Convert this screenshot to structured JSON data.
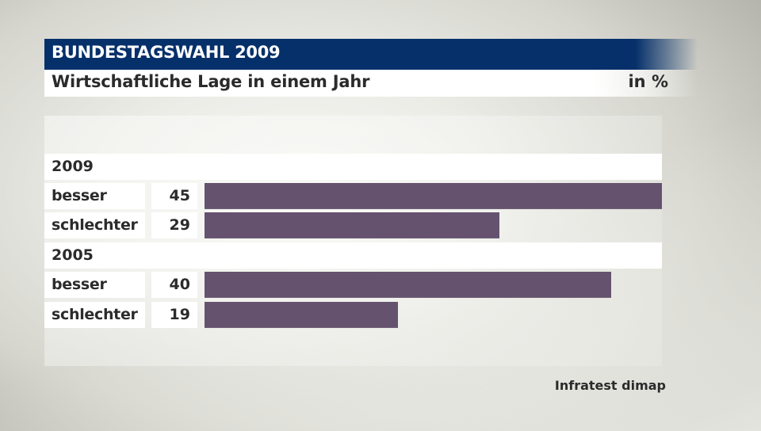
{
  "header": {
    "title": "BUNDESTAGSWAHL 2009",
    "subtitle": "Wirtschaftliche Lage in einem Jahr",
    "unit": "in %"
  },
  "colors": {
    "header_bg": "#06306a",
    "bar": "#65526f",
    "label_bg": "#ffffff",
    "text": "#2b2b2b"
  },
  "groups": [
    {
      "label": "2009",
      "rows": [
        {
          "label": "besser",
          "value": 45
        },
        {
          "label": "schlechter",
          "value": 29
        }
      ]
    },
    {
      "label": "2005",
      "rows": [
        {
          "label": "besser",
          "value": 40
        },
        {
          "label": "schlechter",
          "value": 19
        }
      ]
    }
  ],
  "source": "Infratest dimap",
  "chart_data": {
    "type": "bar",
    "orientation": "horizontal",
    "title": "BUNDESTAGSWAHL 2009",
    "subtitle": "Wirtschaftliche Lage in einem Jahr",
    "unit": "in %",
    "categories": [
      "besser",
      "schlechter"
    ],
    "series": [
      {
        "name": "2009",
        "values": [
          45,
          29
        ]
      },
      {
        "name": "2005",
        "values": [
          40,
          19
        ]
      }
    ],
    "xlabel": "",
    "ylabel": "",
    "xlim": [
      0,
      45
    ],
    "grid": false,
    "legend": "none (group headers above each series)",
    "source": "Infratest dimap",
    "bar_color": "#65526f"
  }
}
